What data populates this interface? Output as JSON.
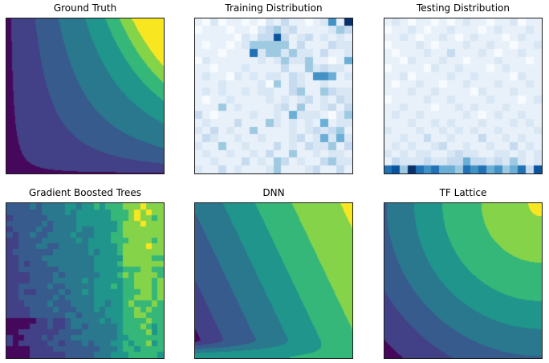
{
  "figure": {
    "background": "#ffffff",
    "panel_border_color": "#1a1a1a",
    "rows": 2,
    "cols": 3
  },
  "colormaps": {
    "viridis8": [
      "#46085c",
      "#424086",
      "#375b8d",
      "#2a788e",
      "#1f958b",
      "#35b779",
      "#85d349",
      "#f8e621"
    ],
    "blues10": [
      "#f7fbff",
      "#e8f1fa",
      "#d9e7f5",
      "#c6dbef",
      "#9ecae1",
      "#6baed6",
      "#4292c6",
      "#2171b5",
      "#0a539e",
      "#08306b"
    ]
  },
  "chart_data": {
    "type": "grid-of-subplots",
    "rows": 2,
    "cols": 3,
    "panels": [
      {
        "id": "ground-truth",
        "title": "Ground Truth",
        "type": "contourf",
        "colormap": "viridis8",
        "x_range": [
          0,
          1
        ],
        "y_range": [
          0,
          1
        ],
        "levels": [
          0.04,
          0.214,
          0.369,
          0.536,
          0.66,
          0.744,
          0.818
        ],
        "formula": "return pow(x,0.9)*pow(y,0.55);",
        "description": "Smooth monotonic surface, low (dark purple) at bottom-left, high (yellow) at top-right; hyperbola-like filled contour bands."
      },
      {
        "id": "training-distribution",
        "title": "Training Distribution",
        "type": "heatmap",
        "colormap": "blues10",
        "grid": [
          20,
          20
        ],
        "cells": [
          "10201101021311012619",
          "01110110234231111243",
          "11111021338312312121",
          "10110124444413111322",
          "11101117244242213112",
          "02111111212422411015",
          "11011121111311423221",
          "12110212122132166512",
          "11121111204132112111",
          "12121121221134114322",
          "10112111121212312132",
          "11141211112314112313",
          "31011112112152221024",
          "12111311142121215122",
          "21312114111121232341",
          "13211211211123125252",
          "21141121113121322413",
          "12112112131141121221",
          "11211131214312113422",
          "21131211124111231131"
        ],
        "description": "20x20 histogram of training samples; density concentrated near the top-middle/right, sparse elsewhere."
      },
      {
        "id": "testing-distribution",
        "title": "Testing Distribution",
        "type": "heatmap",
        "colormap": "blues10",
        "grid": [
          20,
          20
        ],
        "cells": [
          "12101101012110112011",
          "01121011211101211121",
          "11210112101211101211",
          "01112101112112110112",
          "10111211311121011211",
          "11021112110111211101",
          "01111021121110121111",
          "11201111211211110211",
          "10112110112111211121",
          "11121121111021112111",
          "01111211211112111012",
          "11211101121211121111",
          "12112111112101211211",
          "11121121211121112121",
          "21112112121211211112",
          "11211311211131121211",
          "12121123112112113121",
          "21212211232211221212",
          "13222322335332324212",
          "78497675547675645738"
        ],
        "description": "20x20 histogram of testing samples; density concentrated along the bottom row, very sparse above."
      },
      {
        "id": "gradient-boosted-trees",
        "title": "Gradient Boosted Trees",
        "type": "contourf",
        "colormap": "viridis8",
        "x_range": [
          0,
          1
        ],
        "y_range": [
          0,
          1
        ],
        "levels": [
          0.125,
          0.25,
          0.375,
          0.5,
          0.625,
          0.75,
          0.875
        ],
        "formula": "var gx=floor(min(x,0.9999)*27),gy=floor(min(y,0.9999)*27);var qx=gx/26,qy=gy/26;var n=sin(gx*127.1+gy*311.7+17.7)*43758.5453;n-=floor(n);var f=0.13+0.55*qx+0.14*qy+(n-0.5)*0.11;if(qy<0.25)f-=0.06*(1-0.6*qx);if(qy>0.17&&qy<0.26&&qx<0.37)f-=0.05;if(qx>0.76&&qx<0.96)f+=0.10;return f;",
        "description": "Blocky piecewise-constant prediction surface; mostly vertical bands, dark blue left, bright lime strip near right, darker noisy band along the bottom with a purple sliver at lower-left."
      },
      {
        "id": "dnn",
        "title": "DNN",
        "type": "contourf",
        "colormap": "viridis8",
        "x_range": [
          0,
          1
        ],
        "y_range": [
          0,
          1
        ],
        "levels": [
          0.06,
          0.16,
          0.3,
          0.44,
          0.58,
          0.74,
          0.95
        ],
        "formula": "var b=min(1,0.68*x+0.32*y);var t=min(1,y/0.12);var s=t*t*(3-2*t);return (0.52+0.1*x)*(1-s)+b*s;",
        "description": "Steep straight diagonal contour bands from dark (left) to yellow (top-right corner); bands bend horizontal near the bottom edge with a teal strip along the very bottom."
      },
      {
        "id": "tf-lattice",
        "title": "TF Lattice",
        "type": "contourf",
        "colormap": "viridis8",
        "x_range": [
          0,
          1
        ],
        "y_range": [
          0,
          1
        ],
        "levels": [
          0.06,
          0.2,
          0.32,
          0.45,
          0.58,
          0.72,
          0.875
        ],
        "formula": "var r=sqrt(((1-x)*(1-x)+(1-y)*(1-y))/2);var f=1-pow(r,1.08)-0.09*max(0,1-r/0.45);return f;",
        "description": "Smooth concentric curved bands centered on the top-right corner; small dark purple triangle at bottom-left, large light-green region with a tiny yellow patch at extreme top-right."
      }
    ]
  }
}
